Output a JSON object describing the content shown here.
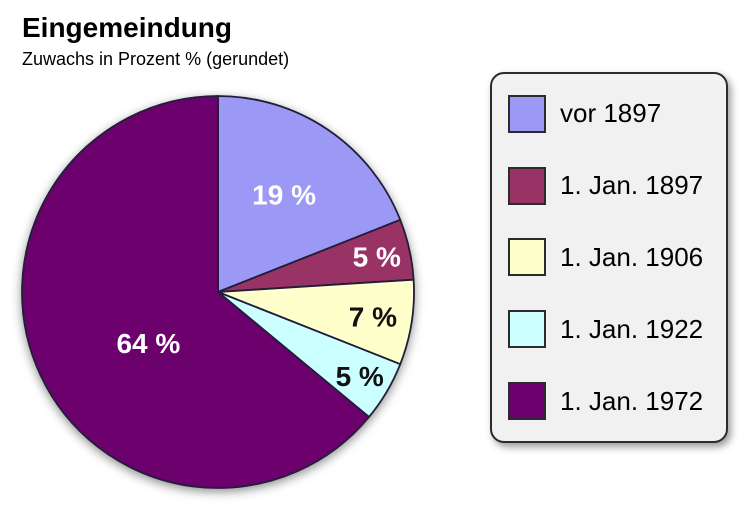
{
  "header": {
    "title": "Eingemeindung",
    "subtitle": "Zuwachs in Prozent % (gerundet)"
  },
  "chart_data": {
    "type": "pie",
    "title": "Eingemeindung",
    "subtitle": "Zuwachs in Prozent % (gerundet)",
    "unit": "%",
    "start_angle_deg": 0,
    "direction": "clockwise",
    "outline_color": "#221d38",
    "legend_position": "right",
    "slices": [
      {
        "label": "vor 1897",
        "value": 19,
        "value_label": "19 %",
        "color": "#9b99f5",
        "text_color": "#ffffff",
        "label_radius": 0.6,
        "label_angle_offset": 0
      },
      {
        "label": "1. Jan. 1897",
        "value": 5,
        "value_label": "5 %",
        "color": "#993366",
        "text_color": "#ffffff",
        "label_radius": 0.83,
        "label_angle_offset": 0
      },
      {
        "label": "1. Jan. 1906",
        "value": 7,
        "value_label": "7 %",
        "color": "#ffffcc",
        "text_color": "#111111",
        "label_radius": 0.8,
        "label_angle_offset": 0
      },
      {
        "label": "1. Jan. 1922",
        "value": 5,
        "value_label": "5 %",
        "color": "#ccffff",
        "text_color": "#111111",
        "label_radius": 0.84,
        "label_angle_offset": 0
      },
      {
        "label": "1. Jan. 1972",
        "value": 64,
        "value_label": "64 %",
        "color": "#6c016e",
        "text_color": "#ffffff",
        "label_radius": 0.44,
        "label_angle_offset": -11
      }
    ]
  }
}
